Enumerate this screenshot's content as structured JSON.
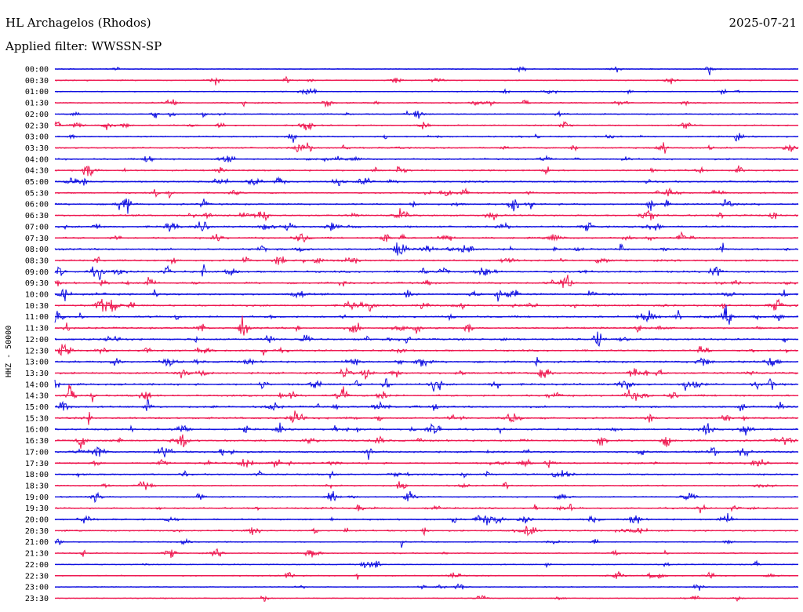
{
  "header": {
    "station": "HL Archagelos (Rhodos)",
    "date": "2025-07-21",
    "filter_label": "Applied filter: WWSSN-SP"
  },
  "colors": {
    "even_trace": "#1010e0",
    "odd_trace": "#ee1850"
  },
  "chart_data": {
    "type": "line",
    "title": "HL Archagelos (Rhodos)",
    "ylabel": "HHZ - 50000",
    "xlabel": "",
    "row_labels": [
      "00:00",
      "00:30",
      "01:00",
      "01:30",
      "02:00",
      "02:30",
      "03:00",
      "03:30",
      "04:00",
      "04:30",
      "05:00",
      "05:30",
      "06:00",
      "06:30",
      "07:00",
      "07:30",
      "08:00",
      "08:30",
      "09:00",
      "09:30",
      "10:00",
      "10:30",
      "11:00",
      "11:30",
      "12:00",
      "12:30",
      "13:00",
      "13:30",
      "14:00",
      "14:30",
      "15:00",
      "15:30",
      "16:00",
      "16:30",
      "17:00",
      "17:30",
      "18:00",
      "18:30",
      "19:00",
      "19:30",
      "20:00",
      "20:30",
      "21:00",
      "21:30",
      "22:00",
      "22:30",
      "23:00",
      "23:30"
    ],
    "activity": [
      0.15,
      0.25,
      0.2,
      0.35,
      0.3,
      0.35,
      0.45,
      0.5,
      0.55,
      0.55,
      0.55,
      0.5,
      0.6,
      0.55,
      0.65,
      0.6,
      0.7,
      0.7,
      0.75,
      0.7,
      0.75,
      0.7,
      0.7,
      0.7,
      0.75,
      0.7,
      0.8,
      0.75,
      0.75,
      0.7,
      0.7,
      0.75,
      0.7,
      0.7,
      0.65,
      0.65,
      0.45,
      0.35,
      0.35,
      0.55,
      0.55,
      0.5,
      0.3,
      0.3,
      0.2,
      0.25,
      0.15,
      0.1
    ]
  }
}
